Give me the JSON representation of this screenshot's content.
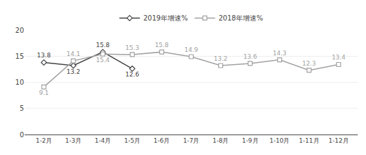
{
  "chart_data": {
    "type": "line",
    "categories": [
      "1-2月",
      "1-3月",
      "1-4月",
      "1-5月",
      "1-6月",
      "1-7月",
      "1-8月",
      "1-9月",
      "1-10月",
      "1-11月",
      "1-12月"
    ],
    "series": [
      {
        "name": "2019年增速%",
        "color": "#404040",
        "marker": "diamond",
        "values": [
          13.8,
          13.2,
          15.8,
          12.6,
          null,
          null,
          null,
          null,
          null,
          null,
          null
        ]
      },
      {
        "name": "2018年增速%",
        "color": "#a0a0a0",
        "marker": "square",
        "values": [
          9.1,
          14.1,
          15.4,
          15.3,
          15.8,
          14.9,
          13.2,
          13.6,
          14.3,
          12.3,
          13.4
        ]
      }
    ],
    "ylim": [
      0,
      20
    ],
    "yticks": [
      0,
      5,
      10,
      15,
      20
    ],
    "grid": true,
    "legend": "top",
    "data_labels": true
  }
}
